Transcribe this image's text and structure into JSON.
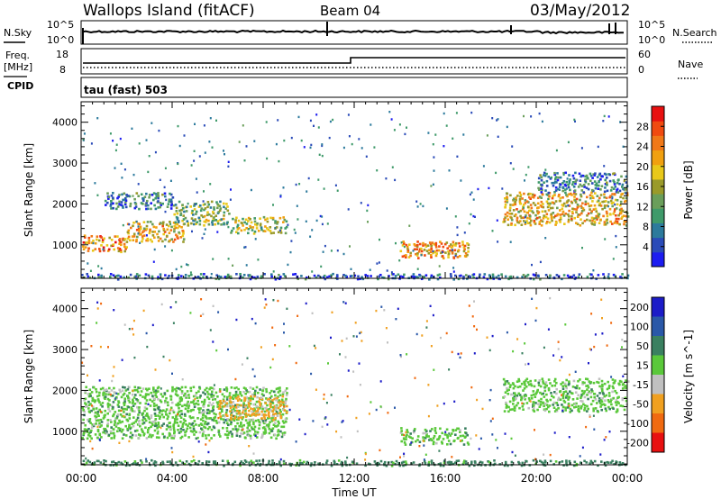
{
  "header": {
    "site": "Wallops Island (fitACF)",
    "beam": "Beam 04",
    "date": "03/May/2012"
  },
  "summary": {
    "nsky_label": "N.Sky",
    "nsky_ticks": [
      "10^5",
      "10^0"
    ],
    "nsearch_label": "N.Search",
    "nsearch_ticks": [
      "10^5",
      "10^0"
    ],
    "freq_label": "Freq.",
    "freq_unit": "[MHz]",
    "freq_ticks": [
      "18",
      "8"
    ],
    "nave_label": "Nave",
    "nave_ticks": [
      "60",
      "0"
    ],
    "cpid_label": "CPID",
    "cpid_value": "tau (fast) 503"
  },
  "chart_data": [
    {
      "type": "heatmap",
      "name": "power",
      "ylabel": "Slant Range [km]",
      "xlabel": "Time UT",
      "xticks": [
        "00:00",
        "04:00",
        "08:00",
        "12:00",
        "16:00",
        "20:00",
        "00:00"
      ],
      "xlim_hours": [
        0,
        24
      ],
      "ylim_km": [
        180,
        4500
      ],
      "yticks": [
        1000,
        2000,
        3000,
        4000
      ],
      "colorbar": {
        "label": "Power [dB]",
        "ticks": [
          4,
          8,
          12,
          16,
          20,
          24,
          28
        ],
        "range": [
          0,
          32
        ],
        "colors": [
          "#1c1cf0",
          "#2a4bb8",
          "#2c7a9c",
          "#3f9a6a",
          "#6a9e5a",
          "#9a9a2a",
          "#e8c81a",
          "#f0a010",
          "#f07818",
          "#f04a10",
          "#e81010"
        ]
      },
      "bands": [
        {
          "t0": 0.0,
          "t1": 2.0,
          "r0": 850,
          "r1": 1250,
          "value": 24
        },
        {
          "t0": 2.0,
          "t1": 4.5,
          "r0": 1100,
          "r1": 1600,
          "value": 20
        },
        {
          "t0": 4.0,
          "t1": 6.5,
          "r0": 1500,
          "r1": 2100,
          "value": 14
        },
        {
          "t0": 6.5,
          "t1": 9.0,
          "r0": 1300,
          "r1": 1700,
          "value": 16
        },
        {
          "t0": 1.0,
          "t1": 4.0,
          "r0": 1900,
          "r1": 2300,
          "value": 8
        },
        {
          "t0": 14.0,
          "t1": 17.0,
          "r0": 700,
          "r1": 1100,
          "value": 22
        },
        {
          "t0": 18.5,
          "t1": 24.0,
          "r0": 1500,
          "r1": 2300,
          "value": 20
        },
        {
          "t0": 20.0,
          "t1": 24.0,
          "r0": 2300,
          "r1": 2800,
          "value": 8
        },
        {
          "t0": 0.0,
          "t1": 24.0,
          "r0": 180,
          "r1": 300,
          "value": 6
        }
      ]
    },
    {
      "type": "heatmap",
      "name": "velocity",
      "ylabel": "Slant Range [km]",
      "xlabel": "Time UT",
      "xticks": [
        "00:00",
        "04:00",
        "08:00",
        "12:00",
        "16:00",
        "20:00",
        "00:00"
      ],
      "xlim_hours": [
        0,
        24
      ],
      "ylim_km": [
        180,
        4500
      ],
      "yticks": [
        1000,
        2000,
        3000,
        4000
      ],
      "colorbar": {
        "label": "Velocity [m s^-1]",
        "ticks": [
          "200",
          "100",
          "50",
          "15",
          "-15",
          "-50",
          "-100",
          "-200"
        ],
        "colors": [
          "#1c1cc8",
          "#2a58a8",
          "#3a8060",
          "#5ac83a",
          "#c0c0c0",
          "#f0a020",
          "#f06a10",
          "#e81010"
        ]
      },
      "bands": [
        {
          "t0": 0.0,
          "t1": 9.0,
          "r0": 850,
          "r1": 2100,
          "value": 0
        },
        {
          "t0": 14.0,
          "t1": 17.0,
          "r0": 700,
          "r1": 1100,
          "value": 0
        },
        {
          "t0": 18.5,
          "t1": 24.0,
          "r0": 1500,
          "r1": 2300,
          "value": 0
        },
        {
          "t0": 0.0,
          "t1": 24.0,
          "r0": 180,
          "r1": 300,
          "value": 30
        },
        {
          "t0": 6.0,
          "t1": 9.0,
          "r0": 1300,
          "r1": 1900,
          "value": -60
        }
      ]
    }
  ]
}
